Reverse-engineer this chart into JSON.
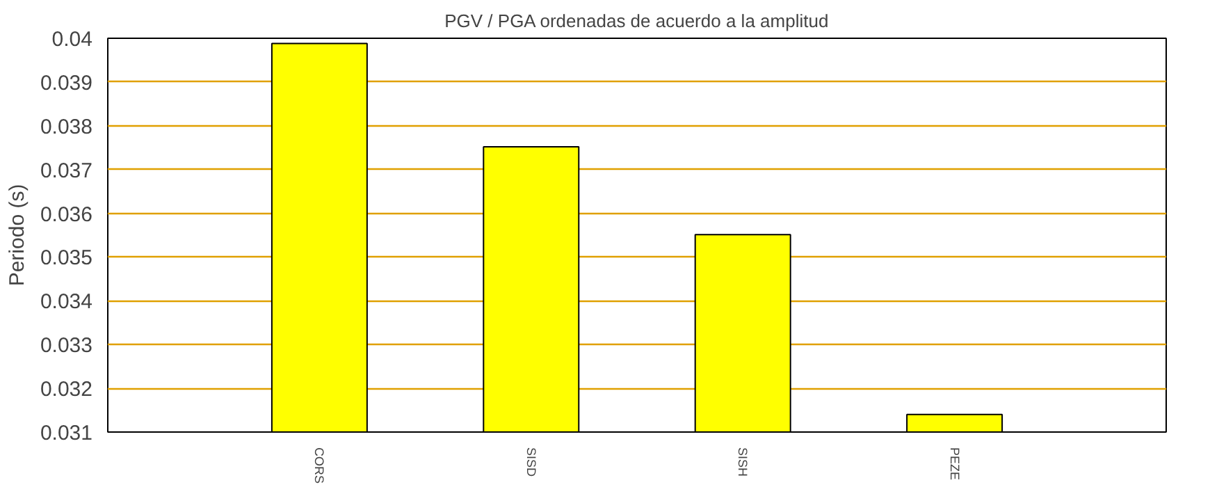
{
  "chart_data": {
    "type": "bar",
    "title": "PGV / PGA ordenadas de acuerdo a la amplitud",
    "ylabel": "Periodo (s)",
    "categories": [
      "CORS",
      "SISD",
      "SISH",
      "PEZE"
    ],
    "values": [
      0.03988,
      0.03752,
      0.03551,
      0.0314
    ],
    "color": "#ffff00",
    "ylim": [
      0.031,
      0.04
    ],
    "yticks": [
      0.031,
      0.032,
      0.033,
      0.034,
      0.035,
      0.036,
      0.037,
      0.038,
      0.039,
      0.04
    ],
    "grid": "y"
  }
}
